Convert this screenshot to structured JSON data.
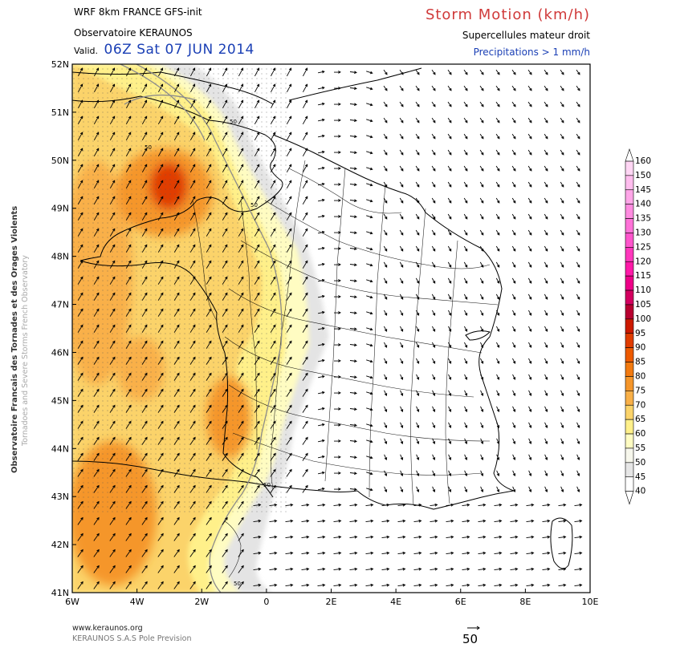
{
  "header": {
    "model": "WRF 8km FRANCE   GFS-init",
    "observatory": "Observatoire KERAUNOS",
    "valid_prefix": "Valid.",
    "valid_datetime": "06Z Sat 07 JUN 2014",
    "title": "Storm Motion (km/h)",
    "subtitle": "Supercellules mateur droit",
    "precip_note": "Precipitations > 1 mm/h"
  },
  "side_label": {
    "line1": "Observatoire Francais des Tornades et des Orages Violents",
    "line2": "Tornadoes and Severe Storms French Observatory"
  },
  "map": {
    "lat_labels": [
      "52N",
      "51N",
      "50N",
      "49N",
      "48N",
      "47N",
      "46N",
      "45N",
      "44N",
      "43N",
      "42N",
      "41N"
    ],
    "lon_labels": [
      "6W",
      "4W",
      "2W",
      "0",
      "2E",
      "4E",
      "6E",
      "8E",
      "10E"
    ],
    "contour_labels": [
      "50",
      "50",
      "50",
      "50",
      "50"
    ],
    "wind_vectors": "storm-motion-arrows"
  },
  "legend": {
    "values": [
      "160",
      "150",
      "145",
      "140",
      "135",
      "130",
      "125",
      "120",
      "115",
      "110",
      "105",
      "100",
      "95",
      "90",
      "85",
      "80",
      "75",
      "70",
      "65",
      "60",
      "55",
      "50",
      "45",
      "40"
    ],
    "colors": [
      "#ffffff",
      "#ffd6f4",
      "#ffbdee",
      "#ffa6e8",
      "#ff8ce0",
      "#ff72d8",
      "#ff55cc",
      "#ff38bc",
      "#ff1aa8",
      "#ee0088",
      "#d40060",
      "#b80030",
      "#cc1a00",
      "#e03c00",
      "#ed5a00",
      "#f27a10",
      "#f5962a",
      "#f9b048",
      "#fbd36a",
      "#fff08a",
      "#fffcc2",
      "#f7f7ec",
      "#e6e6e6",
      "#ffffff"
    ]
  },
  "footer": {
    "url": "www.keraunos.org",
    "company": "KERAUNOS S.A.S Pole Prevision",
    "reference_value": "50"
  }
}
